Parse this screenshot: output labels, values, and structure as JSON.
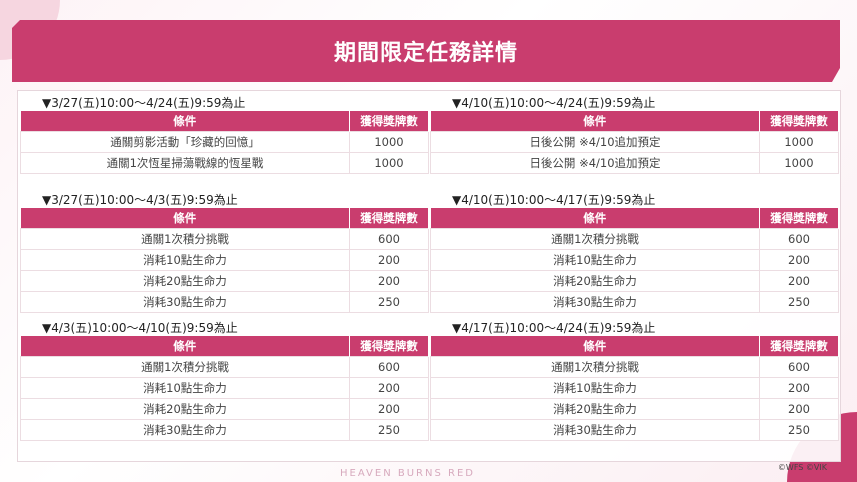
{
  "title": "期間限定任務詳情",
  "header_condition": "條件",
  "header_reward": "獲得獎牌數",
  "sections": [
    {
      "period": "▼3/27(五)10:00～4/24(五)9:59為止",
      "rows": [
        [
          "通關剪影活動「珍藏的回憶」",
          "1000"
        ],
        [
          "通關1次恆星掃蕩戰線的恆星戰",
          "1000"
        ]
      ]
    },
    {
      "period": "▼4/10(五)10:00～4/24(五)9:59為止",
      "rows": [
        [
          "日後公開 ※4/10追加預定",
          "1000"
        ],
        [
          "日後公開 ※4/10追加預定",
          "1000"
        ]
      ]
    },
    {
      "period": "▼3/27(五)10:00～4/3(五)9:59為止",
      "rows": [
        [
          "通關1次積分挑戰",
          "600"
        ],
        [
          "消耗10點生命力",
          "200"
        ],
        [
          "消耗20點生命力",
          "200"
        ],
        [
          "消耗30點生命力",
          "250"
        ]
      ]
    },
    {
      "period": "▼4/10(五)10:00～4/17(五)9:59為止",
      "rows": [
        [
          "通關1次積分挑戰",
          "600"
        ],
        [
          "消耗10點生命力",
          "200"
        ],
        [
          "消耗20點生命力",
          "200"
        ],
        [
          "消耗30點生命力",
          "250"
        ]
      ]
    },
    {
      "period": "▼4/3(五)10:00～4/10(五)9:59為止",
      "rows": [
        [
          "通關1次積分挑戰",
          "600"
        ],
        [
          "消耗10點生命力",
          "200"
        ],
        [
          "消耗20點生命力",
          "200"
        ],
        [
          "消耗30點生命力",
          "250"
        ]
      ]
    },
    {
      "period": "▼4/17(五)10:00～4/24(五)9:59為止",
      "rows": [
        [
          "通關1次積分挑戰",
          "600"
        ],
        [
          "消耗10點生命力",
          "200"
        ],
        [
          "消耗20點生命力",
          "200"
        ],
        [
          "消耗30點生命力",
          "250"
        ]
      ]
    }
  ],
  "footer_logo": "HEAVEN BURNS RED",
  "copyright": "©WFS ©VIK",
  "colors": {
    "accent": "#c93d6e"
  }
}
